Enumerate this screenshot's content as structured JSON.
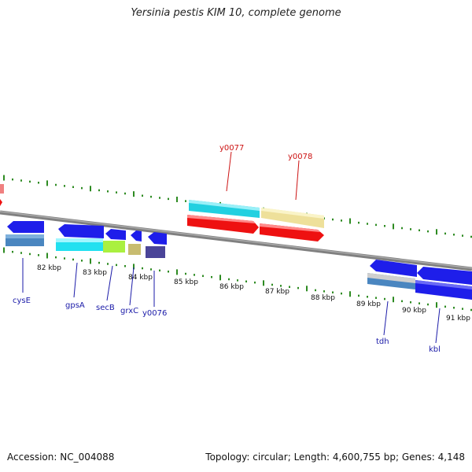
{
  "title": "Yersinia pestis KIM 10, complete genome",
  "accession_label": "Accession:",
  "accession": "NC_004088",
  "topology_label": "Topology:",
  "topology": "circular",
  "length_label": "Length:",
  "length": "4,600,755 bp",
  "genes_label": "Genes:",
  "genes": "4,148",
  "ticks": [
    "82 kbp",
    "83 kbp",
    "84 kbp",
    "85 kbp",
    "86 kbp",
    "87 kbp",
    "88 kbp",
    "89 kbp",
    "90 kbp",
    "91 kbp"
  ],
  "gene_labels_bottom": [
    "cysE",
    "gpsA",
    "secB",
    "grxC",
    "y0076",
    "tdh",
    "kbl"
  ],
  "gene_labels_top": [
    "y0077",
    "y0078"
  ],
  "colors": {
    "backbone": "#808080",
    "tick_green": "#2e8b22",
    "label_blue": "#1a1aa8",
    "label_red": "#cc1111",
    "cds_blue": "#1e1eea",
    "cds_red": "#ee1111",
    "cyan": "#22d0e0",
    "khaki": "#eee09a",
    "steel": "#4a86c0",
    "lime": "#aaf040",
    "tan": "#c8bc70",
    "indigo": "#4a4498",
    "pink": "#f08080"
  }
}
